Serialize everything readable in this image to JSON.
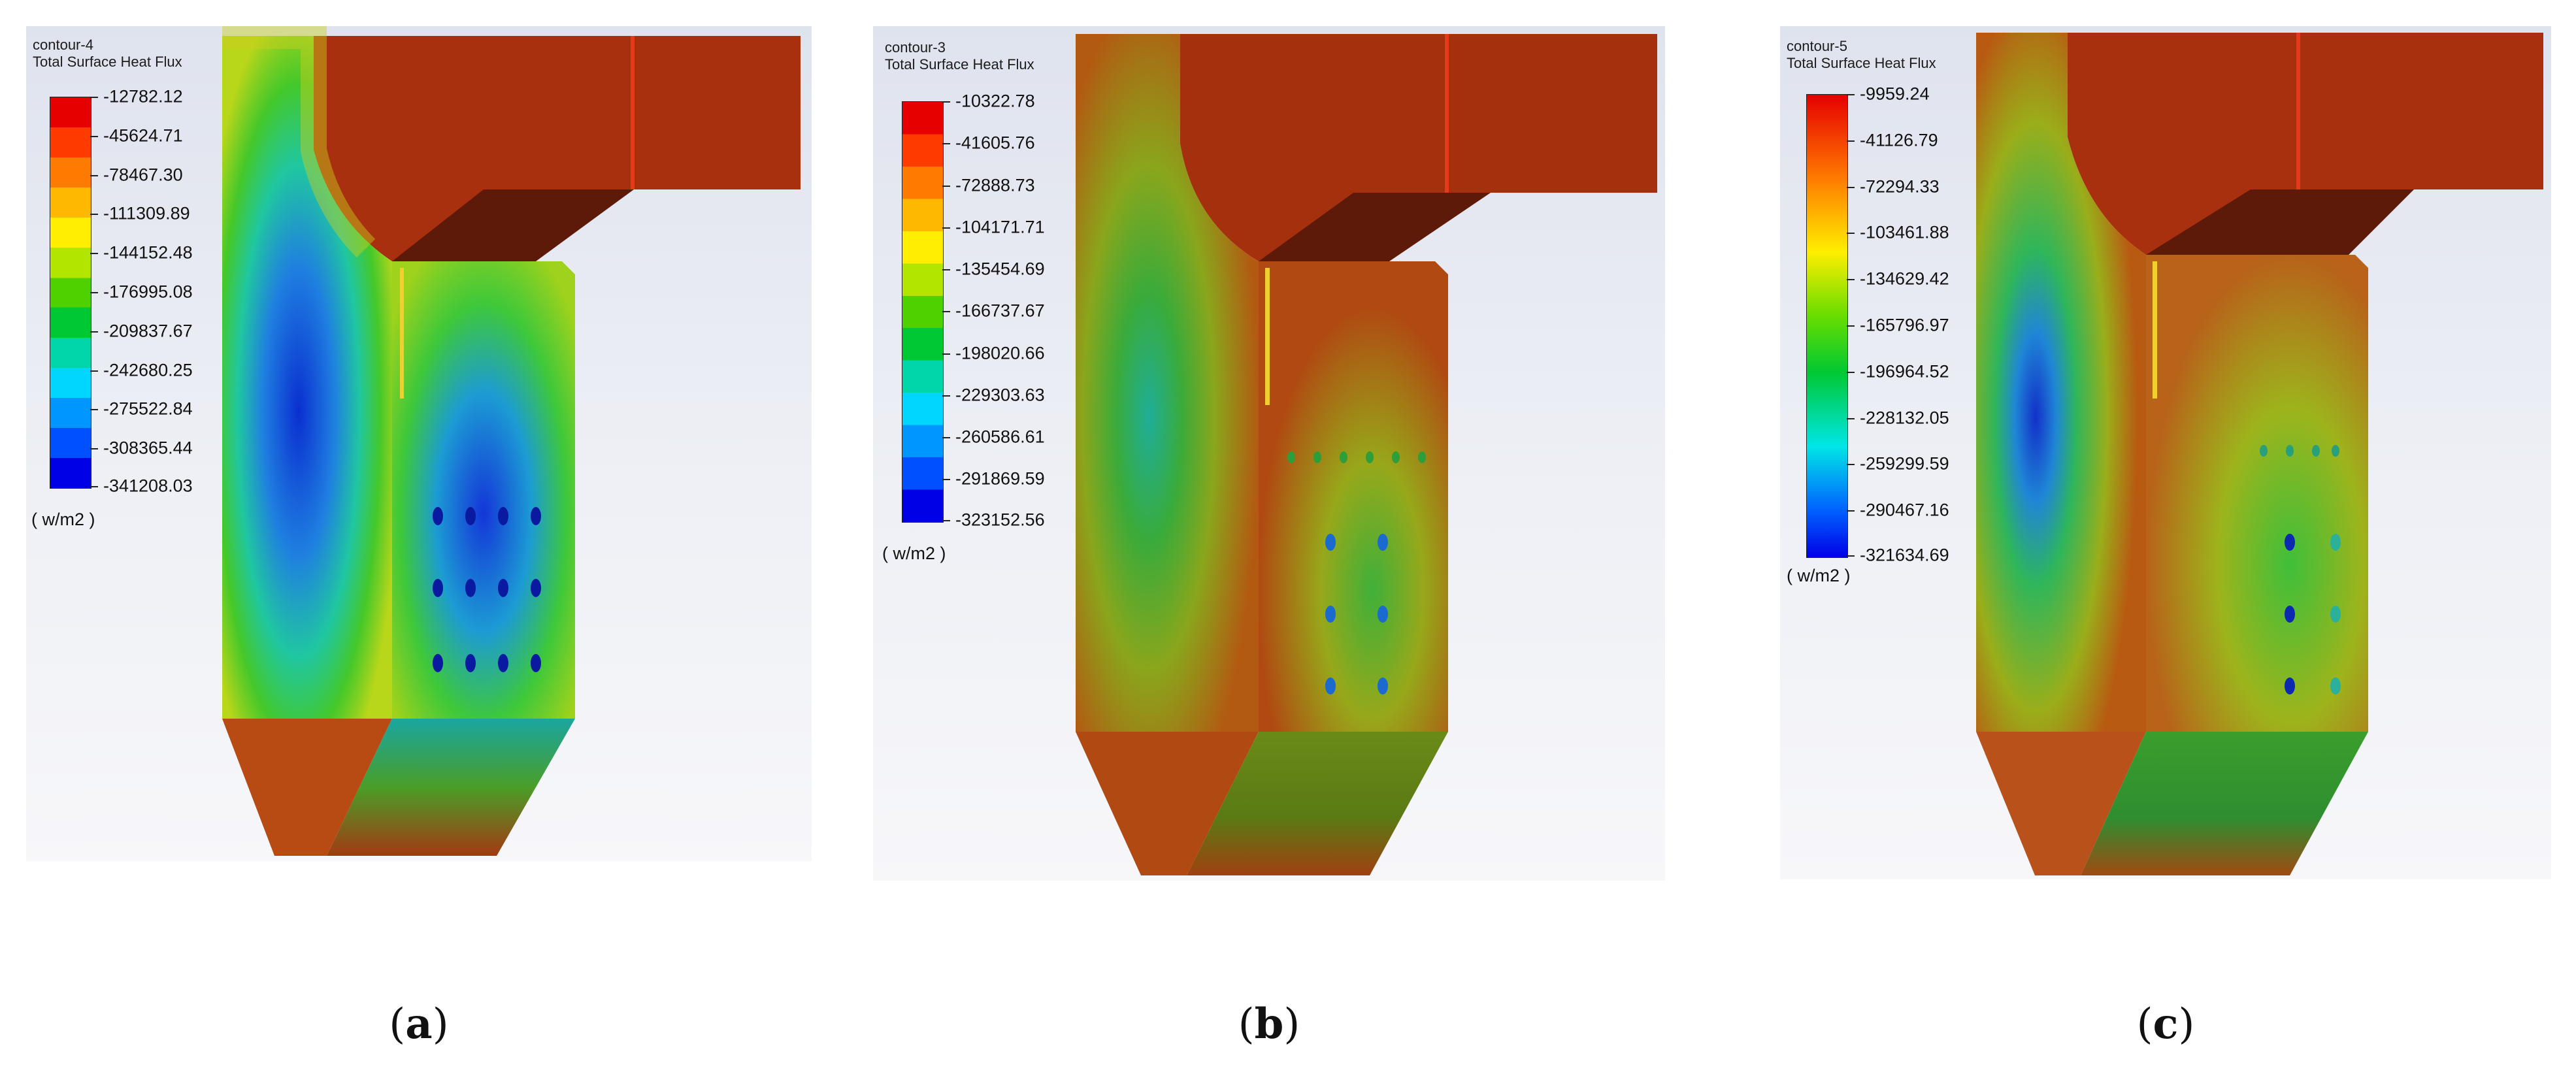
{
  "panels": [
    {
      "id": "a",
      "contour_name": "contour-4",
      "variable": "Total Surface Heat Flux",
      "unit": "( w/m2 )",
      "legend_style": "banded",
      "legend_values": [
        "-12782.12",
        "-45624.71",
        "-78467.30",
        "-111309.89",
        "-144152.48",
        "-176995.08",
        "-209837.67",
        "-242680.25",
        "-275522.84",
        "-308365.44",
        "-341208.03"
      ],
      "caption_letter": "a"
    },
    {
      "id": "b",
      "contour_name": "contour-3",
      "variable": "Total Surface Heat Flux",
      "unit": "( w/m2 )",
      "legend_style": "banded",
      "legend_values": [
        "-10322.78",
        "-41605.76",
        "-72888.73",
        "-104171.71",
        "-135454.69",
        "-166737.67",
        "-198020.66",
        "-229303.63",
        "-260586.61",
        "-291869.59",
        "-323152.56"
      ],
      "caption_letter": "b"
    },
    {
      "id": "c",
      "contour_name": "contour-5",
      "variable": "Total Surface Heat Flux",
      "unit": "( w/m2 )",
      "legend_style": "smooth",
      "legend_values": [
        "-9959.24",
        "-41126.79",
        "-72294.33",
        "-103461.88",
        "-134629.42",
        "-165796.97",
        "-196964.52",
        "-228132.05",
        "-259299.59",
        "-290467.16",
        "-321634.69"
      ],
      "caption_letter": "c"
    }
  ]
}
